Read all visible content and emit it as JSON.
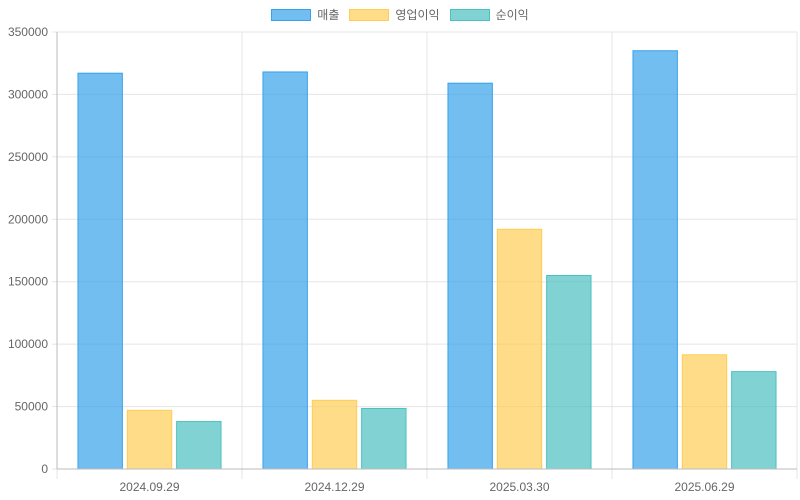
{
  "chart_data": {
    "type": "bar",
    "categories": [
      "2024.09.29",
      "2024.12.29",
      "2025.03.30",
      "2025.06.29"
    ],
    "series": [
      {
        "name": "매출",
        "values": [
          317000,
          318000,
          309000,
          335000
        ],
        "color": "#36a2eb"
      },
      {
        "name": "영업이익",
        "values": [
          47000,
          55000,
          192000,
          91500
        ],
        "color": "#ffcd56"
      },
      {
        "name": "순이익",
        "values": [
          38000,
          48500,
          155000,
          78000
        ],
        "color": "#4bc0c0"
      }
    ],
    "ylim": [
      0,
      350000
    ],
    "yticks": [
      0,
      50000,
      100000,
      150000,
      200000,
      250000,
      300000,
      350000
    ],
    "ytick_labels": [
      "0",
      "50000",
      "100000",
      "150000",
      "200000",
      "250000",
      "300000",
      "350000"
    ],
    "grid": true,
    "legend_position": "top"
  }
}
